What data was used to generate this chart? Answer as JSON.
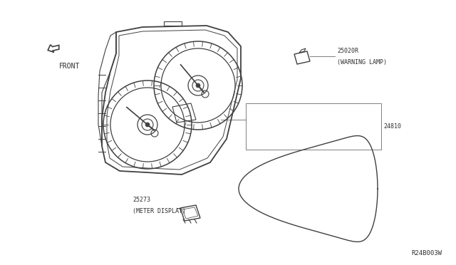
{
  "bg_color": "#ffffff",
  "line_color": "#404040",
  "light_line_color": "#808080",
  "label_color": "#303030",
  "part_number_25020R": "25020R",
  "label_25020R": "(WARNING LAMP)",
  "part_number_24810": "24810",
  "part_number_25273": "25273",
  "label_25273": "(METER DISPLAY)",
  "front_label": "FRONT",
  "diagram_ref": "R24B003W"
}
